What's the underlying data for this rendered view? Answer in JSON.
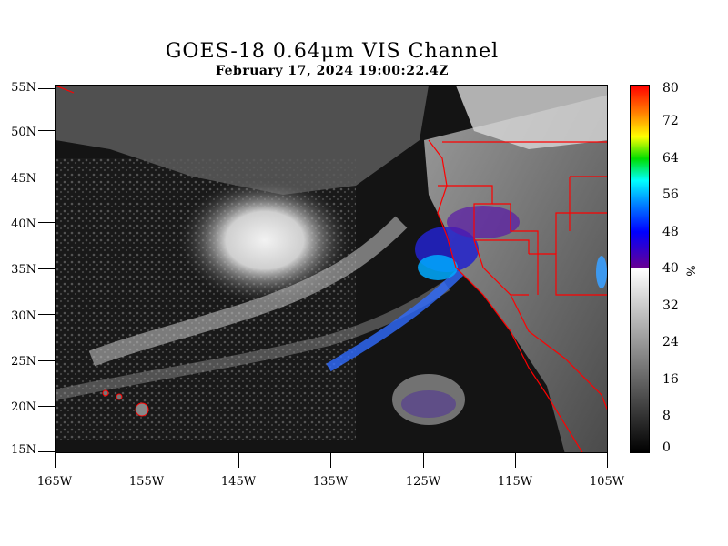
{
  "title": "GOES-18  0.64μm VIS Channel",
  "subtitle": "February 17,  2024 19:00:22.4Z",
  "map": {
    "lat_labels": [
      "55N",
      "50N",
      "45N",
      "40N",
      "35N",
      "30N",
      "25N",
      "20N",
      "15N"
    ],
    "lon_labels": [
      "165W",
      "155W",
      "145W",
      "135W",
      "125W",
      "115W",
      "105W"
    ],
    "lat_range": [
      15,
      55
    ],
    "lon_range": [
      -165,
      -105
    ],
    "border_color": "#ff0000",
    "land_shading": "gray",
    "ocean_shading": "dark"
  },
  "colorbar": {
    "labels": [
      "80",
      "72",
      "64",
      "56",
      "48",
      "40",
      "32",
      "24",
      "16",
      "8",
      "0"
    ],
    "unit": "%",
    "range": [
      0,
      80
    ],
    "gray_portion": [
      0,
      40
    ],
    "color_portion": [
      40,
      80
    ]
  }
}
